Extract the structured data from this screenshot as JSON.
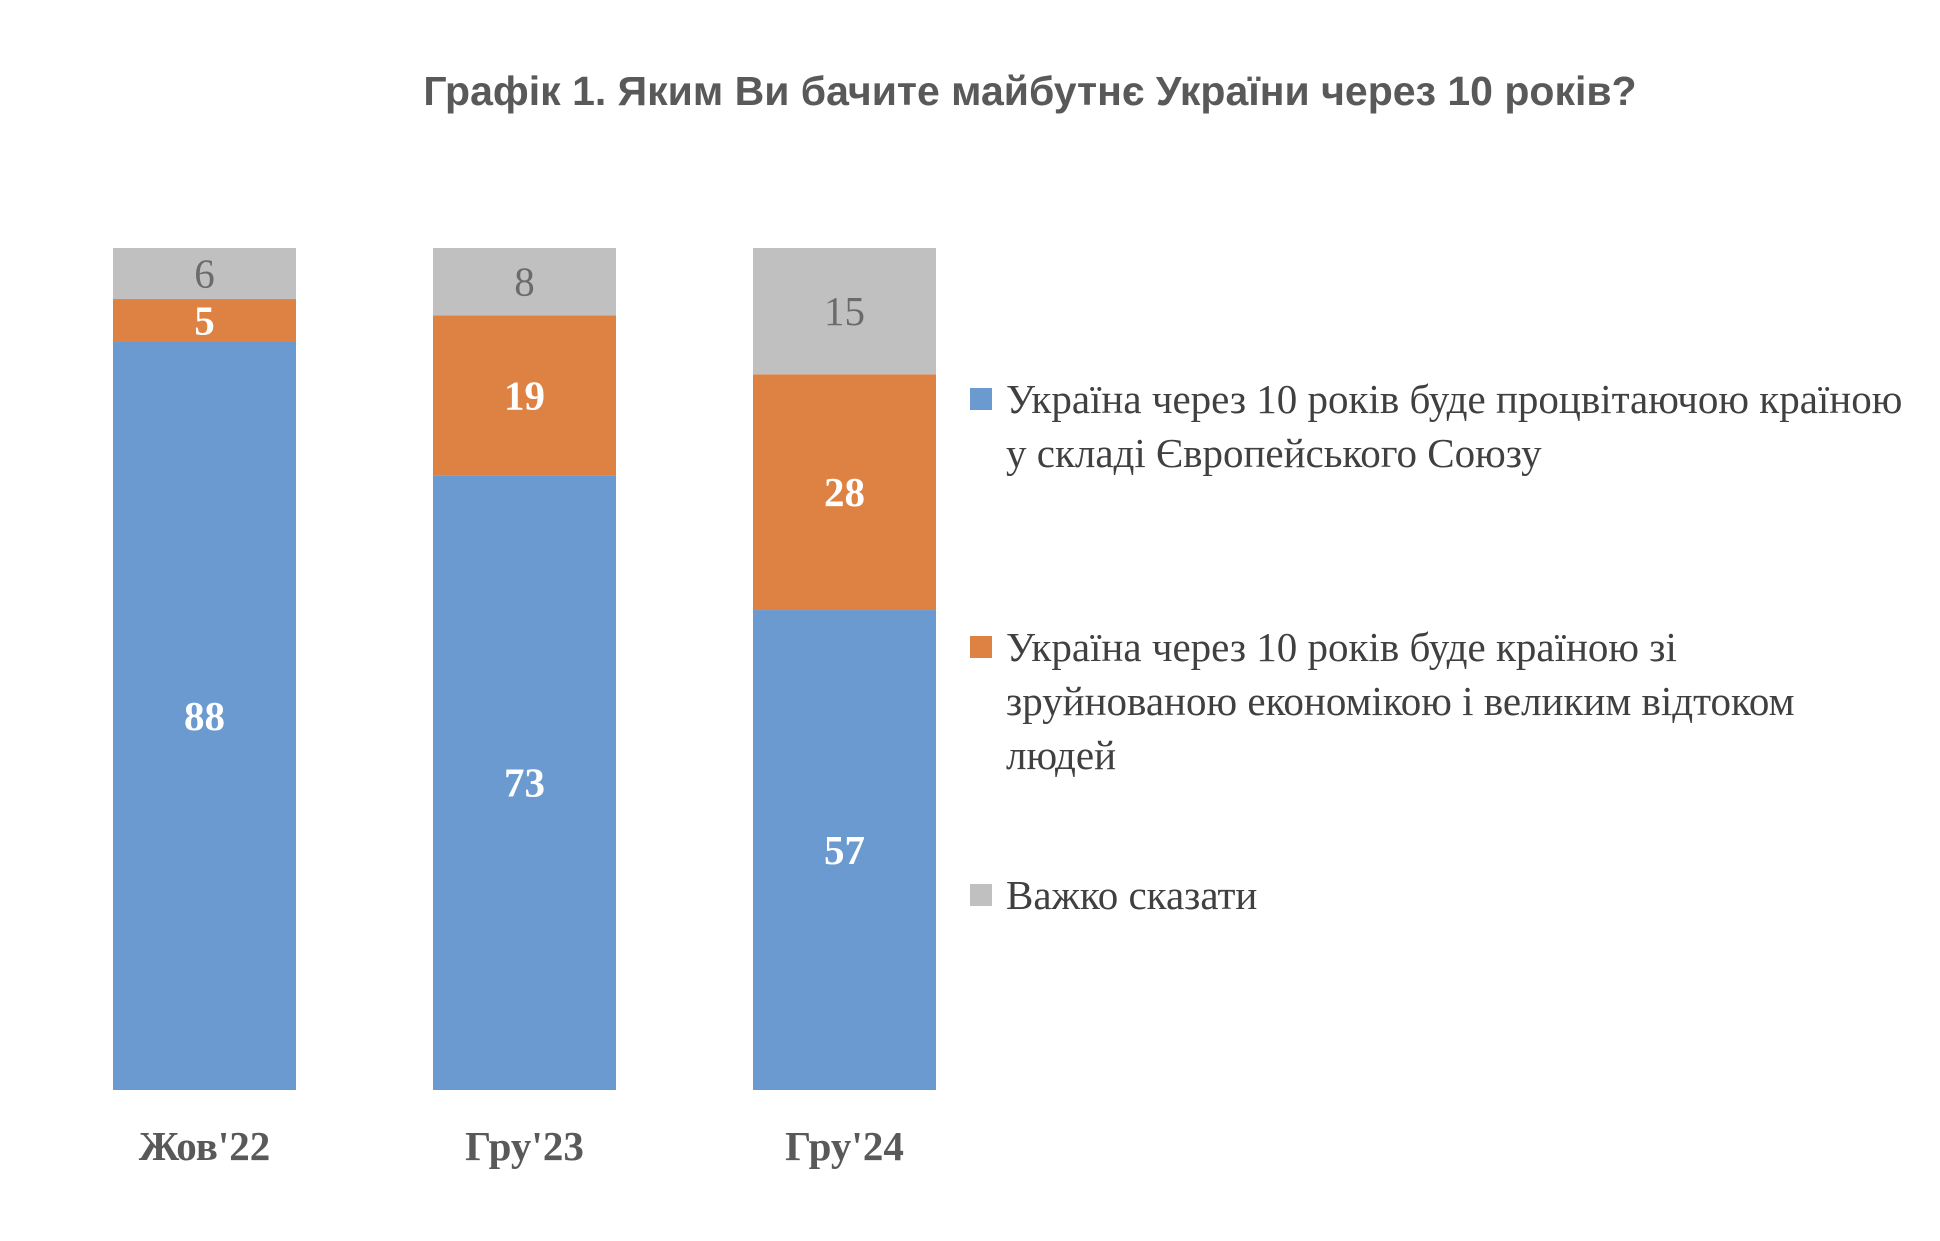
{
  "chart_data": {
    "type": "bar",
    "stacked": true,
    "title": "Графік 1. Яким Ви бачите майбутнє України через 10 років?",
    "categories": [
      "Жов'22",
      "Гру'23",
      "Гру'24"
    ],
    "series": [
      {
        "name": "Україна через 10 років буде процвітаючою країною у складі Європейського Союзу",
        "values": [
          88,
          73,
          57
        ],
        "color": "#6a9acf",
        "label_color": "#ffffff"
      },
      {
        "name": "Україна через 10 років буде країною зі зруйнованою економікою і великим відтоком людей",
        "values": [
          5,
          19,
          28
        ],
        "color": "#de8244",
        "label_color": "#ffffff"
      },
      {
        "name": "Важко сказати",
        "values": [
          6,
          8,
          15
        ],
        "color": "#c0c0c0",
        "label_color": "#6b6b6b"
      }
    ],
    "legend_position": "right",
    "grid": false,
    "axes_visible": false
  }
}
